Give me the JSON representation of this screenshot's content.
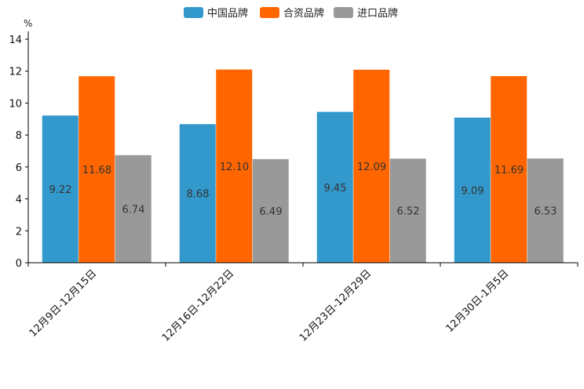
{
  "chart_data": {
    "type": "bar",
    "unit": "%",
    "categories": [
      "12月9日-12月15日",
      "12月16日-12月22日",
      "12月23日-12月29日",
      "12月30日-1月5日"
    ],
    "series": [
      {
        "name": "中国品牌",
        "color": "#3399cc",
        "values": [
          9.22,
          8.68,
          9.45,
          9.09
        ],
        "labels": [
          "9.22",
          "8.68",
          "9.45",
          "9.09"
        ]
      },
      {
        "name": "合资品牌",
        "color": "#ff6600",
        "values": [
          11.68,
          12.1,
          12.09,
          11.69
        ],
        "labels": [
          "11.68",
          "12.10",
          "12.09",
          "11.69"
        ]
      },
      {
        "name": "进口品牌",
        "color": "#999999",
        "values": [
          6.74,
          6.49,
          6.52,
          6.53
        ],
        "labels": [
          "6.74",
          "6.49",
          "6.52",
          "6.53"
        ]
      }
    ],
    "ylim": [
      0,
      14
    ],
    "yticks": [
      0,
      2,
      4,
      6,
      8,
      10,
      12,
      14
    ],
    "legend_position": "top-center",
    "grid": false
  }
}
